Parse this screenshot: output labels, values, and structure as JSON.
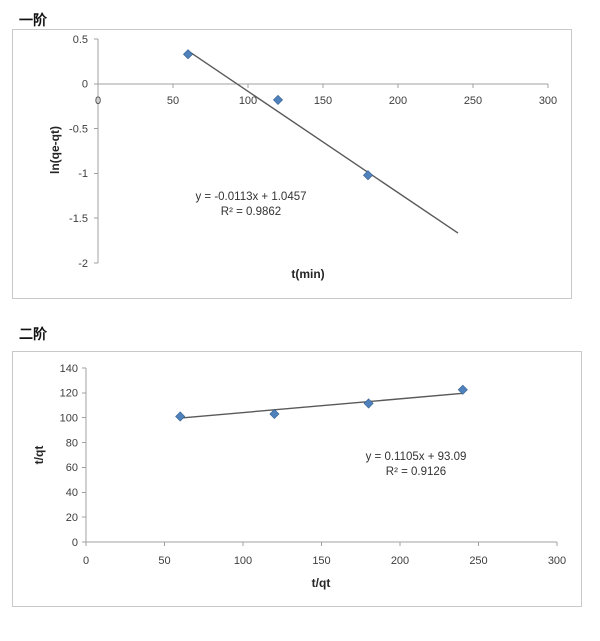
{
  "sections": [
    {
      "label": "一阶"
    },
    {
      "label": "二阶"
    }
  ],
  "chart_data": [
    {
      "type": "scatter",
      "title": "一阶",
      "x": [
        60,
        120,
        180
      ],
      "y": [
        0.33,
        -0.18,
        -1.02
      ],
      "xlabel": "t(min)",
      "ylabel": "ln(qe-qt)",
      "xlim": [
        0,
        300
      ],
      "ylim": [
        -2,
        0.5
      ],
      "xticks": [
        0,
        50,
        100,
        150,
        200,
        250,
        300
      ],
      "yticks": [
        0.5,
        0,
        -0.5,
        -1,
        -1.5,
        -2
      ],
      "grid": false,
      "legend": "none",
      "marker": {
        "shape": "diamond",
        "color": "#4F81BD"
      },
      "trendline": {
        "slope": -0.0113,
        "intercept": 1.0457,
        "x_start": 60,
        "x_end": 240,
        "color": "#595959",
        "equation_label": "y = -0.0113x + 1.0457",
        "r2_label": "R² = 0.9862"
      }
    },
    {
      "type": "scatter",
      "title": "二阶",
      "x": [
        60,
        120,
        180,
        240
      ],
      "y": [
        101,
        103,
        111.5,
        122.5
      ],
      "xlabel": "t/qt",
      "ylabel": "t/qt",
      "xlim": [
        0,
        300
      ],
      "ylim": [
        0,
        140
      ],
      "xticks": [
        0,
        50,
        100,
        150,
        200,
        250,
        300
      ],
      "yticks": [
        0,
        20,
        40,
        60,
        80,
        100,
        120,
        140
      ],
      "grid": false,
      "legend": "none",
      "marker": {
        "shape": "diamond",
        "color": "#4F81BD"
      },
      "trendline": {
        "slope": 0.1105,
        "intercept": 93.09,
        "x_start": 60,
        "x_end": 240,
        "color": "#595959",
        "equation_label": "y = 0.1105x + 93.09",
        "r2_label": "R² = 0.9126"
      }
    }
  ],
  "colors": {
    "marker_fill": "#4F81BD",
    "marker_edge": "#36618E",
    "trendline": "#595959",
    "axis_line": "#A0A0A0",
    "tick_text": "#3D3D3D",
    "chart_border": "#C9C9C9"
  }
}
